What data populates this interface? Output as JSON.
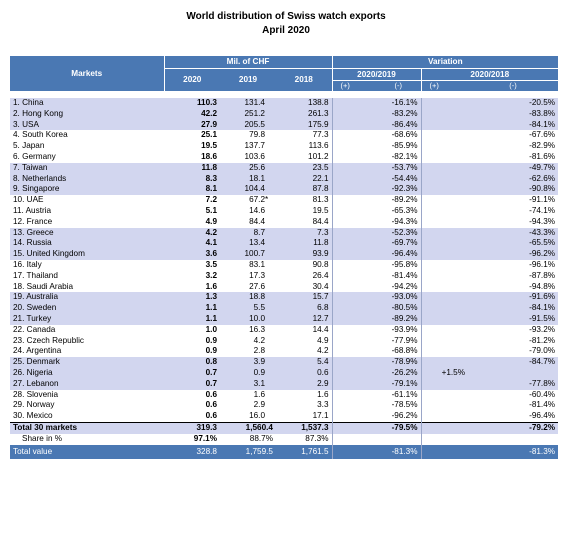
{
  "title": {
    "line1": "World distribution of Swiss watch exports",
    "line2": "April 2020"
  },
  "header": {
    "markets": "Markets",
    "mil_chf": "Mil. of CHF",
    "variation": "Variation",
    "years": [
      "2020",
      "2019",
      "2018"
    ],
    "var_periods": [
      "2020/2019",
      "2020/2018"
    ],
    "plus": "(+)",
    "minus": "(-)"
  },
  "rows": [
    {
      "market": "1. China",
      "v2020": "110.3",
      "v2019": "131.4",
      "star": "",
      "v2018": "138.8",
      "p19": "",
      "m19": "-16.1%",
      "p18": "",
      "m18": "-20.5%",
      "band": true
    },
    {
      "market": "2. Hong Kong",
      "v2020": "42.2",
      "v2019": "251.2",
      "star": "",
      "v2018": "261.3",
      "p19": "",
      "m19": "-83.2%",
      "p18": "",
      "m18": "-83.8%",
      "band": true
    },
    {
      "market": "3. USA",
      "v2020": "27.9",
      "v2019": "205.5",
      "star": "",
      "v2018": "175.9",
      "p19": "",
      "m19": "-86.4%",
      "p18": "",
      "m18": "-84.1%",
      "band": true
    },
    {
      "market": "4. South Korea",
      "v2020": "25.1",
      "v2019": "79.8",
      "star": "",
      "v2018": "77.3",
      "p19": "",
      "m19": "-68.6%",
      "p18": "",
      "m18": "-67.6%",
      "band": false
    },
    {
      "market": "5. Japan",
      "v2020": "19.5",
      "v2019": "137.7",
      "star": "",
      "v2018": "113.6",
      "p19": "",
      "m19": "-85.9%",
      "p18": "",
      "m18": "-82.9%",
      "band": false
    },
    {
      "market": "6. Germany",
      "v2020": "18.6",
      "v2019": "103.6",
      "star": "",
      "v2018": "101.2",
      "p19": "",
      "m19": "-82.1%",
      "p18": "",
      "m18": "-81.6%",
      "band": false
    },
    {
      "market": "7. Taiwan",
      "v2020": "11.8",
      "v2019": "25.6",
      "star": "",
      "v2018": "23.5",
      "p19": "",
      "m19": "-53.7%",
      "p18": "",
      "m18": "-49.7%",
      "band": true
    },
    {
      "market": "8. Netherlands",
      "v2020": "8.3",
      "v2019": "18.1",
      "star": "",
      "v2018": "22.1",
      "p19": "",
      "m19": "-54.4%",
      "p18": "",
      "m18": "-62.6%",
      "band": true
    },
    {
      "market": "9. Singapore",
      "v2020": "8.1",
      "v2019": "104.4",
      "star": "",
      "v2018": "87.8",
      "p19": "",
      "m19": "-92.3%",
      "p18": "",
      "m18": "-90.8%",
      "band": true
    },
    {
      "market": "10. UAE",
      "v2020": "7.2",
      "v2019": "67.2",
      "star": "*",
      "v2018": "81.3",
      "p19": "",
      "m19": "-89.2%",
      "p18": "",
      "m18": "-91.1%",
      "band": false
    },
    {
      "market": "11. Austria",
      "v2020": "5.1",
      "v2019": "14.6",
      "star": "",
      "v2018": "19.5",
      "p19": "",
      "m19": "-65.3%",
      "p18": "",
      "m18": "-74.1%",
      "band": false
    },
    {
      "market": "12. France",
      "v2020": "4.9",
      "v2019": "84.4",
      "star": "",
      "v2018": "84.4",
      "p19": "",
      "m19": "-94.3%",
      "p18": "",
      "m18": "-94.3%",
      "band": false
    },
    {
      "market": "13. Greece",
      "v2020": "4.2",
      "v2019": "8.7",
      "star": "",
      "v2018": "7.3",
      "p19": "",
      "m19": "-52.3%",
      "p18": "",
      "m18": "-43.3%",
      "band": true
    },
    {
      "market": "14. Russia",
      "v2020": "4.1",
      "v2019": "13.4",
      "star": "",
      "v2018": "11.8",
      "p19": "",
      "m19": "-69.7%",
      "p18": "",
      "m18": "-65.5%",
      "band": true
    },
    {
      "market": "15. United Kingdom",
      "v2020": "3.6",
      "v2019": "100.7",
      "star": "",
      "v2018": "93.9",
      "p19": "",
      "m19": "-96.4%",
      "p18": "",
      "m18": "-96.2%",
      "band": true
    },
    {
      "market": "16. Italy",
      "v2020": "3.5",
      "v2019": "83.1",
      "star": "",
      "v2018": "90.8",
      "p19": "",
      "m19": "-95.8%",
      "p18": "",
      "m18": "-96.1%",
      "band": false
    },
    {
      "market": "17. Thailand",
      "v2020": "3.2",
      "v2019": "17.3",
      "star": "",
      "v2018": "26.4",
      "p19": "",
      "m19": "-81.4%",
      "p18": "",
      "m18": "-87.8%",
      "band": false
    },
    {
      "market": "18. Saudi Arabia",
      "v2020": "1.6",
      "v2019": "27.6",
      "star": "",
      "v2018": "30.4",
      "p19": "",
      "m19": "-94.2%",
      "p18": "",
      "m18": "-94.8%",
      "band": false
    },
    {
      "market": "19. Australia",
      "v2020": "1.3",
      "v2019": "18.8",
      "star": "",
      "v2018": "15.7",
      "p19": "",
      "m19": "-93.0%",
      "p18": "",
      "m18": "-91.6%",
      "band": true
    },
    {
      "market": "20. Sweden",
      "v2020": "1.1",
      "v2019": "5.5",
      "star": "",
      "v2018": "6.8",
      "p19": "",
      "m19": "-80.5%",
      "p18": "",
      "m18": "-84.1%",
      "band": true
    },
    {
      "market": "21. Turkey",
      "v2020": "1.1",
      "v2019": "10.0",
      "star": "",
      "v2018": "12.7",
      "p19": "",
      "m19": "-89.2%",
      "p18": "",
      "m18": "-91.5%",
      "band": true
    },
    {
      "market": "22. Canada",
      "v2020": "1.0",
      "v2019": "16.3",
      "star": "",
      "v2018": "14.4",
      "p19": "",
      "m19": "-93.9%",
      "p18": "",
      "m18": "-93.2%",
      "band": false
    },
    {
      "market": "23. Czech Republic",
      "v2020": "0.9",
      "v2019": "4.2",
      "star": "",
      "v2018": "4.9",
      "p19": "",
      "m19": "-77.9%",
      "p18": "",
      "m18": "-81.2%",
      "band": false
    },
    {
      "market": "24. Argentina",
      "v2020": "0.9",
      "v2019": "2.8",
      "star": "",
      "v2018": "4.2",
      "p19": "",
      "m19": "-68.8%",
      "p18": "",
      "m18": "-79.0%",
      "band": false
    },
    {
      "market": "25. Denmark",
      "v2020": "0.8",
      "v2019": "3.9",
      "star": "",
      "v2018": "5.4",
      "p19": "",
      "m19": "-78.9%",
      "p18": "",
      "m18": "-84.7%",
      "band": true
    },
    {
      "market": "26. Nigeria",
      "v2020": "0.7",
      "v2019": "0.9",
      "star": "",
      "v2018": "0.6",
      "p19": "",
      "m19": "-26.2%",
      "p18": "+1.5%",
      "m18": "",
      "band": true
    },
    {
      "market": "27. Lebanon",
      "v2020": "0.7",
      "v2019": "3.1",
      "star": "",
      "v2018": "2.9",
      "p19": "",
      "m19": "-79.1%",
      "p18": "",
      "m18": "-77.8%",
      "band": true
    },
    {
      "market": "28. Slovenia",
      "v2020": "0.6",
      "v2019": "1.6",
      "star": "",
      "v2018": "1.6",
      "p19": "",
      "m19": "-61.1%",
      "p18": "",
      "m18": "-60.4%",
      "band": false
    },
    {
      "market": "29. Norway",
      "v2020": "0.6",
      "v2019": "2.9",
      "star": "",
      "v2018": "3.3",
      "p19": "",
      "m19": "-78.5%",
      "p18": "",
      "m18": "-81.4%",
      "band": false
    },
    {
      "market": "30. Mexico",
      "v2020": "0.6",
      "v2019": "16.0",
      "star": "",
      "v2018": "17.1",
      "p19": "",
      "m19": "-96.2%",
      "p18": "",
      "m18": "-96.4%",
      "band": false
    }
  ],
  "total30": {
    "label": "Total 30 markets",
    "v2020": "319.3",
    "v2019": "1,560.4",
    "v2018": "1,537.3",
    "m19": "-79.5%",
    "m18": "-79.2%"
  },
  "share": {
    "label": "Share in %",
    "v2020": "97.1%",
    "v2019": "88.7%",
    "v2018": "87.3%"
  },
  "total_value": {
    "label": "Total value",
    "v2020": "328.8",
    "v2019": "1,759.5",
    "v2018": "1,761.5",
    "m19": "-81.3%",
    "m18": "-81.3%"
  },
  "colors": {
    "header_blue": "#4a78b3",
    "band_lavender": "#d2d6ef"
  }
}
